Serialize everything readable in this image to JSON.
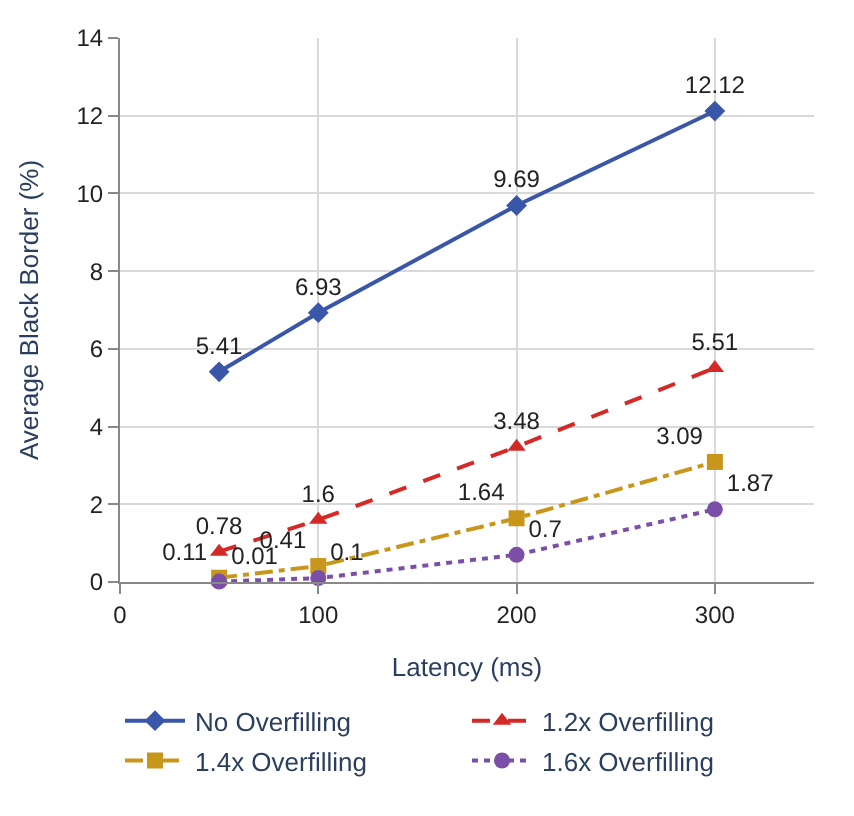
{
  "chart_data": {
    "type": "line",
    "xlabel": "Latency (ms)",
    "ylabel": "Average Black Border (%)",
    "x": [
      50,
      100,
      200,
      300
    ],
    "series": [
      {
        "name": "No Overfilling",
        "color": "#3a56a8",
        "values": [
          5.41,
          6.93,
          9.69,
          12.12
        ],
        "marker": "diamond",
        "line_style": "solid"
      },
      {
        "name": "1.2x Overfilling",
        "color": "#d42a27",
        "values": [
          0.78,
          1.6,
          3.48,
          5.51
        ],
        "marker": "triangle",
        "line_style": "dashed"
      },
      {
        "name": "1.4x Overfilling",
        "color": "#c9961c",
        "values": [
          0.11,
          0.41,
          1.64,
          3.09
        ],
        "marker": "square",
        "line_style": "dashdot"
      },
      {
        "name": "1.6x Overfilling",
        "color": "#7b4fa8",
        "values": [
          0.01,
          0.1,
          0.7,
          1.87
        ],
        "marker": "circle",
        "line_style": "dotted"
      }
    ],
    "xlim": [
      0,
      350
    ],
    "xticks": [
      0,
      100,
      200,
      300
    ],
    "ylim": [
      0,
      14
    ],
    "yticks": [
      0,
      2,
      4,
      6,
      8,
      10,
      12,
      14
    ],
    "grid": true,
    "legend": "bottom",
    "data_labels": true
  }
}
